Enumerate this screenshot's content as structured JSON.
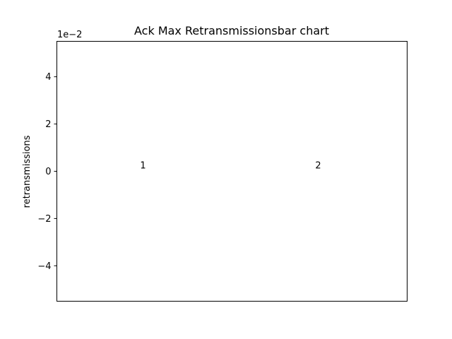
{
  "chart_data": {
    "type": "bar",
    "title": "Ack Max Retransmissionsbar chart",
    "xlabel": "",
    "ylabel": "retransmissions",
    "y_offset_text": "1e−2",
    "ylim": [
      -5.5,
      5.5
    ],
    "y_ticks": [
      -4,
      -2,
      0,
      2,
      4
    ],
    "y_tick_labels": [
      "−4",
      "−2",
      "0",
      "2",
      "4"
    ],
    "x_ticks_visible": false,
    "grid": false,
    "categories": [
      "1",
      "2"
    ],
    "values": [
      0,
      0
    ],
    "data_labels": [
      "1",
      "2"
    ]
  }
}
